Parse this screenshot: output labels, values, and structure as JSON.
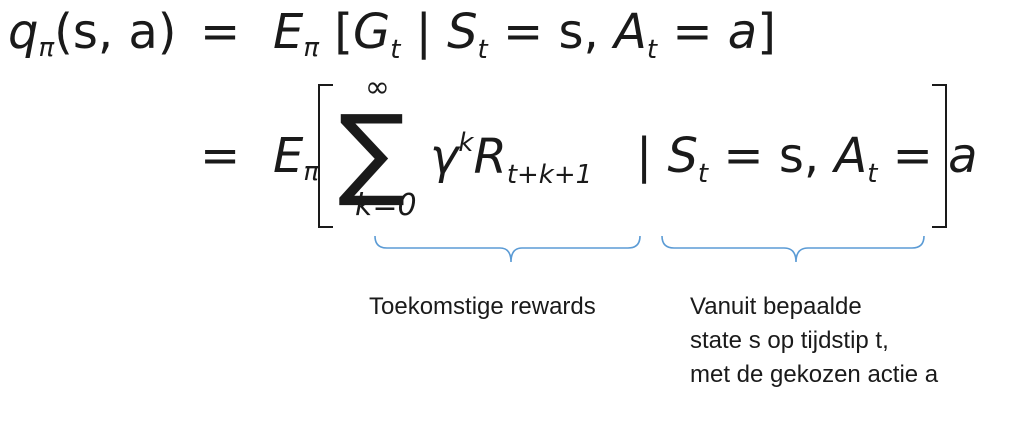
{
  "formula": {
    "lhs": "q",
    "lhs_sub": "π",
    "lhs_args": "(s, a)",
    "equals": "=",
    "line1_E": "E",
    "line1_E_sub": "π",
    "line1_bracket_open": "[",
    "line1_G": "G",
    "line1_G_sub": "t",
    "line1_bar": " | ",
    "line1_S": "S",
    "line1_S_sub": "t",
    "line1_eq_s": " = s, ",
    "line1_A": "A",
    "line1_A_sub": "t",
    "line1_eq_a": " = a",
    "line1_bracket_close": "]",
    "sum_symbol": "∑",
    "sum_upper": "∞",
    "sum_lower": "k=0",
    "gamma": "γ",
    "gamma_sup": "k",
    "R": "R",
    "R_sub": "t+k+1",
    "line2_bar": " | ",
    "line2_S": "S",
    "line2_S_sub": "t",
    "line2_eq_s": " = s, ",
    "line2_A": "A",
    "line2_A_sub": "t",
    "line2_eq_a": " = a"
  },
  "annotations": {
    "future_rewards": "Toekomstige rewards",
    "from_state": [
      "Vanuit bepaalde",
      "state s op tijdstip t,",
      "met de gekozen actie a"
    ]
  },
  "colors": {
    "brace": "#5b9bd5",
    "text": "#1a1a1a"
  }
}
